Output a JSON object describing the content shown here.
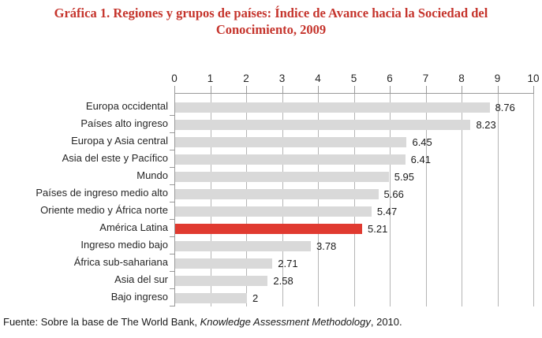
{
  "title": {
    "line1": "Gráfica 1. Regiones y grupos de países: Índice de Avance hacia la Sociedad del",
    "line2": "Conocimiento, 2009",
    "color": "#c5342c"
  },
  "chart_data": {
    "type": "bar",
    "orientation": "horizontal",
    "title": "Gráfica 1. Regiones y grupos de países: Índice de Avance hacia la Sociedad del Conocimiento, 2009",
    "categories": [
      "Europa occidental",
      "Países alto ingreso",
      "Europa y Asia central",
      "Asia del este y Pacífico",
      "Mundo",
      "Países de ingreso medio alto",
      "Oriente medio y África norte",
      "América Latina",
      "Ingreso medio bajo",
      "África sub-sahariana",
      "Asia del sur",
      "Bajo ingreso"
    ],
    "values": [
      8.76,
      8.23,
      6.45,
      6.41,
      5.95,
      5.66,
      5.47,
      5.21,
      3.78,
      2.71,
      2.58,
      2
    ],
    "value_labels": [
      "8.76",
      "8.23",
      "6.45",
      "6.41",
      "5.95",
      "5.66",
      "5.47",
      "5.21",
      "3.78",
      "2.71",
      "2.58",
      "2"
    ],
    "highlight_index": 7,
    "highlight_category": "América Latina",
    "xlim": [
      0,
      10
    ],
    "x_ticks": [
      "0",
      "1",
      "2",
      "3",
      "4",
      "5",
      "6",
      "7",
      "8",
      "9",
      "10"
    ],
    "grid": true,
    "legend": "none",
    "bar_color": "#d9d9d9",
    "highlight_color": "#e03a30",
    "axis_color": "#999999",
    "gridline_color": "#b5b5b5"
  },
  "source": {
    "prefix": "Fuente: Sobre la base de The World Bank, ",
    "italic": "Knowledge Assessment Methodology",
    "suffix": ", 2010."
  }
}
